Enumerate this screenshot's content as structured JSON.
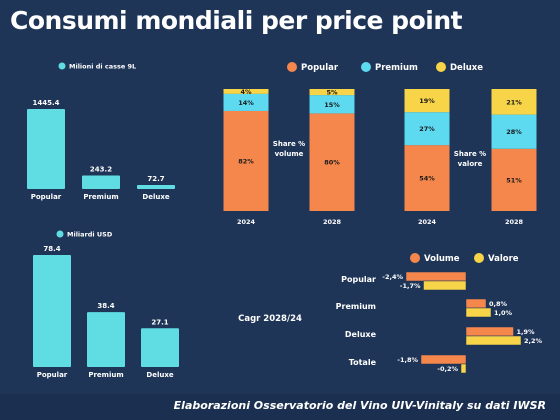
{
  "title": "Consumi mondiali per price point",
  "footer": "Elaborazioni Osservatorio del Vino UIV-Vinitaly su dati IWSR",
  "colors": {
    "background": "#1f3557",
    "turquoise": "#5fdde2",
    "popular": "#f5874d",
    "premium": "#5dd9f0",
    "deluxe": "#f7d448",
    "volume": "#f5874d",
    "valore": "#f7d448"
  },
  "chart_data": [
    {
      "type": "bar",
      "legend": "Milioni di casse 9L",
      "categories": [
        "Popular",
        "Premium",
        "Deluxe"
      ],
      "values": [
        1445.4,
        243.2,
        72.7
      ],
      "value_labels": [
        "1445.4",
        "243.2",
        "72.7"
      ],
      "ylim": [
        0,
        1445.4
      ]
    },
    {
      "type": "bar",
      "legend": "Miliardi USD",
      "categories": [
        "Popular",
        "Premium",
        "Deluxe"
      ],
      "values": [
        78.4,
        38.4,
        27.1
      ],
      "value_labels": [
        "78.4",
        "38.4",
        "27.1"
      ],
      "ylim": [
        0,
        78.4
      ]
    },
    {
      "type": "bar",
      "stacked": true,
      "label": "Share % volume",
      "categories": [
        "2024",
        "2028"
      ],
      "series": [
        {
          "name": "Popular",
          "values": [
            82,
            80
          ],
          "labels": [
            "82%",
            "80%"
          ]
        },
        {
          "name": "Premium",
          "values": [
            14,
            15
          ],
          "labels": [
            "14%",
            "15%"
          ]
        },
        {
          "name": "Deluxe",
          "values": [
            4,
            5
          ],
          "labels": [
            "4%",
            "5%"
          ]
        }
      ]
    },
    {
      "type": "bar",
      "stacked": true,
      "label": "Share % valore",
      "categories": [
        "2024",
        "2028"
      ],
      "series": [
        {
          "name": "Popular",
          "values": [
            54,
            51
          ],
          "labels": [
            "54%",
            "51%"
          ]
        },
        {
          "name": "Premium",
          "values": [
            27,
            28
          ],
          "labels": [
            "27%",
            "28%"
          ]
        },
        {
          "name": "Deluxe",
          "values": [
            19,
            21
          ],
          "labels": [
            "19%",
            "21%"
          ]
        }
      ]
    },
    {
      "type": "bar",
      "orientation": "horizontal",
      "label": "Cagr 2028/24",
      "categories": [
        "Popular",
        "Premium",
        "Deluxe",
        "Totale"
      ],
      "series": [
        {
          "name": "Volume",
          "values": [
            -2.4,
            0.8,
            1.9,
            -1.8
          ],
          "labels": [
            "-2,4%",
            "0,8%",
            "1,9%",
            "-1,8%"
          ]
        },
        {
          "name": "Valore",
          "values": [
            -1.7,
            1.0,
            2.2,
            -0.2
          ],
          "labels": [
            "-1,7%",
            "1,0%",
            "2,2%",
            "-0,2%"
          ]
        }
      ]
    }
  ],
  "legend_top": [
    "Popular",
    "Premium",
    "Deluxe"
  ]
}
